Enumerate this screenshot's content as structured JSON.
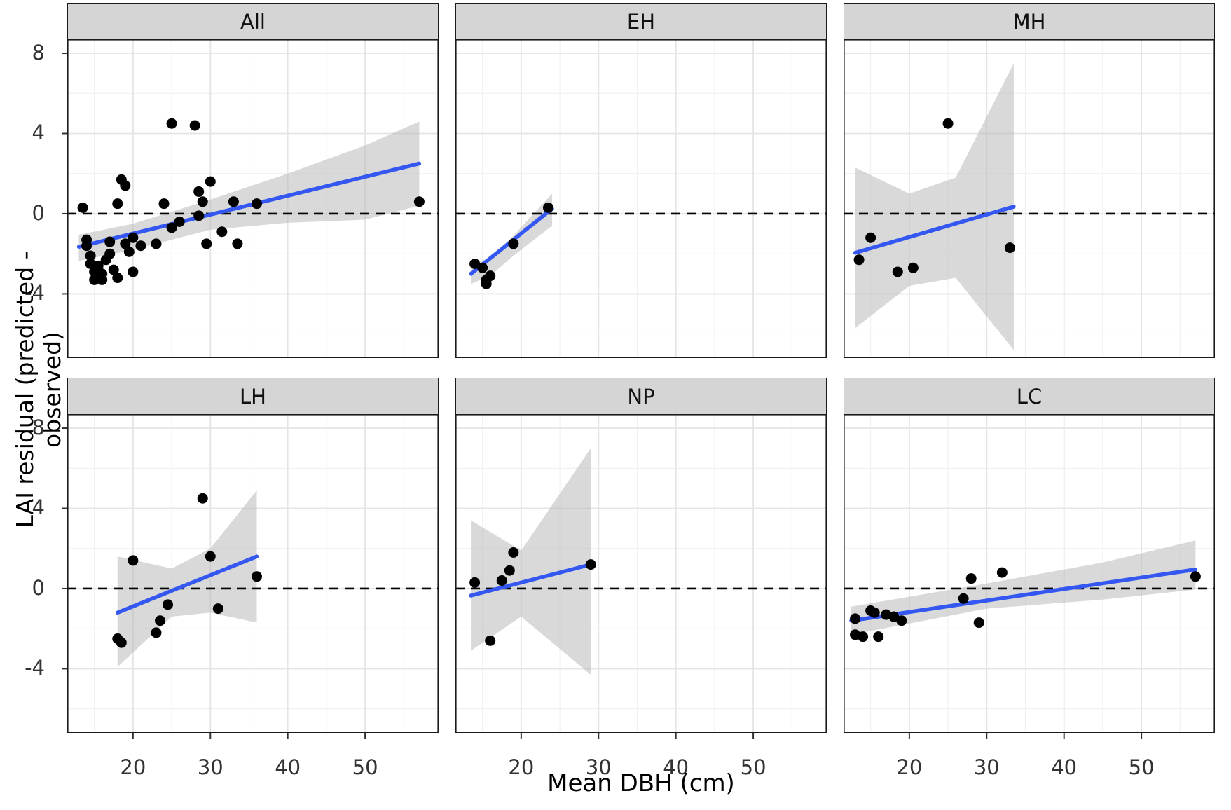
{
  "chart_data": {
    "type": "scatter",
    "title": "",
    "xlabel": "Mean DBH (cm)",
    "ylabel": "LAI residual (predicted - observed)",
    "legend": "none",
    "grid": true,
    "xlim": [
      11.5,
      59.5
    ],
    "ylim": [
      -7.2,
      8.7
    ],
    "x_ticks": [
      20,
      30,
      40,
      50
    ],
    "y_ticks": [
      -4,
      0,
      4,
      8
    ],
    "x_minor": [
      15,
      25,
      35,
      45,
      55
    ],
    "y_minor": [
      -6,
      -2,
      2,
      6
    ],
    "reference_line_y": 0,
    "point_color": "#000000",
    "trend_color": "#3357f0",
    "ribbon_color": "#b9b9b9",
    "grid_major_color": "#e4e4e4",
    "grid_minor_color": "#f1f1f1",
    "strip_bg_color": "#d5d5d5",
    "panels": [
      {
        "title": "All",
        "points": [
          [
            13.5,
            0.3
          ],
          [
            14,
            -1.3
          ],
          [
            14,
            -1.6
          ],
          [
            14.5,
            -2.1
          ],
          [
            14.5,
            -2.5
          ],
          [
            15,
            -2.9
          ],
          [
            15,
            -3.3
          ],
          [
            15.5,
            -2.6
          ],
          [
            16,
            -3.0
          ],
          [
            16,
            -3.3
          ],
          [
            16.5,
            -2.3
          ],
          [
            17,
            -1.4
          ],
          [
            17,
            -2.0
          ],
          [
            17.5,
            -2.8
          ],
          [
            18,
            -3.2
          ],
          [
            18,
            0.5
          ],
          [
            18.5,
            1.7
          ],
          [
            19,
            1.4
          ],
          [
            19,
            -1.5
          ],
          [
            19.5,
            -1.9
          ],
          [
            20,
            -1.2
          ],
          [
            20,
            -2.9
          ],
          [
            21,
            -1.6
          ],
          [
            23,
            -1.5
          ],
          [
            24,
            0.5
          ],
          [
            25,
            4.5
          ],
          [
            25,
            -0.7
          ],
          [
            26,
            -0.4
          ],
          [
            28,
            4.4
          ],
          [
            28.5,
            1.1
          ],
          [
            28.5,
            -0.1
          ],
          [
            29,
            0.6
          ],
          [
            29.5,
            -1.5
          ],
          [
            30,
            1.6
          ],
          [
            31.5,
            -0.9
          ],
          [
            33,
            0.6
          ],
          [
            33.5,
            -1.5
          ],
          [
            36,
            0.5
          ],
          [
            57,
            0.6
          ]
        ],
        "trend": {
          "x": [
            13,
            57
          ],
          "y": [
            -1.65,
            2.5
          ]
        },
        "ribbon": {
          "x": [
            13,
            20,
            30,
            40,
            50,
            57
          ],
          "upper": [
            -1.05,
            -0.5,
            0.7,
            2.0,
            3.4,
            4.6
          ],
          "lower": [
            -2.35,
            -1.8,
            -0.8,
            -0.45,
            -0.3,
            0.4
          ]
        }
      },
      {
        "title": "EH",
        "points": [
          [
            14,
            -2.5
          ],
          [
            15,
            -2.7
          ],
          [
            15.5,
            -3.3
          ],
          [
            15.5,
            -3.5
          ],
          [
            16,
            -3.1
          ],
          [
            19,
            -1.5
          ],
          [
            23.5,
            0.3
          ]
        ],
        "trend": {
          "x": [
            13.5,
            24
          ],
          "y": [
            -3.0,
            0.25
          ]
        },
        "ribbon": {
          "x": [
            13.5,
            16,
            19,
            24
          ],
          "upper": [
            -2.5,
            -2.2,
            -1.1,
            1.0
          ],
          "lower": [
            -3.5,
            -3.1,
            -2.1,
            -0.6
          ]
        }
      },
      {
        "title": "MH",
        "points": [
          [
            13.5,
            -2.3
          ],
          [
            15,
            -1.2
          ],
          [
            18.5,
            -2.9
          ],
          [
            20.5,
            -2.7
          ],
          [
            25,
            4.5
          ],
          [
            33,
            -1.7
          ]
        ],
        "trend": {
          "x": [
            13,
            33.5
          ],
          "y": [
            -1.95,
            0.35
          ]
        },
        "ribbon": {
          "x": [
            13,
            20,
            26,
            33.5
          ],
          "upper": [
            2.3,
            1.0,
            1.8,
            7.5
          ],
          "lower": [
            -5.7,
            -3.6,
            -3.2,
            -6.8
          ]
        }
      },
      {
        "title": "LH",
        "points": [
          [
            18,
            -2.5
          ],
          [
            18.5,
            -2.7
          ],
          [
            20,
            1.4
          ],
          [
            23,
            -2.2
          ],
          [
            23.5,
            -1.6
          ],
          [
            24.5,
            -0.8
          ],
          [
            29,
            4.5
          ],
          [
            30,
            1.6
          ],
          [
            31,
            -1.0
          ],
          [
            36,
            0.6
          ]
        ],
        "trend": {
          "x": [
            18,
            36
          ],
          "y": [
            -1.2,
            1.6
          ]
        },
        "ribbon": {
          "x": [
            18,
            25,
            30,
            36
          ],
          "upper": [
            1.6,
            1.0,
            2.0,
            4.9
          ],
          "lower": [
            -3.9,
            -1.4,
            -1.2,
            -1.7
          ]
        }
      },
      {
        "title": "NP",
        "points": [
          [
            14,
            0.3
          ],
          [
            16,
            -2.6
          ],
          [
            17.5,
            0.4
          ],
          [
            18.5,
            0.9
          ],
          [
            19,
            1.8
          ],
          [
            29,
            1.2
          ]
        ],
        "trend": {
          "x": [
            13.5,
            29
          ],
          "y": [
            -0.35,
            1.2
          ]
        },
        "ribbon": {
          "x": [
            13.5,
            20,
            29
          ],
          "upper": [
            3.4,
            1.9,
            7.0
          ],
          "lower": [
            -3.1,
            -1.4,
            -4.3
          ]
        }
      },
      {
        "title": "LC",
        "points": [
          [
            13,
            -1.5
          ],
          [
            13,
            -2.3
          ],
          [
            14,
            -2.4
          ],
          [
            15,
            -1.1
          ],
          [
            15.5,
            -1.2
          ],
          [
            16,
            -2.4
          ],
          [
            17,
            -1.3
          ],
          [
            18,
            -1.4
          ],
          [
            19,
            -1.6
          ],
          [
            27,
            -0.5
          ],
          [
            28,
            0.5
          ],
          [
            29,
            -1.7
          ],
          [
            32,
            0.8
          ],
          [
            57,
            0.6
          ]
        ],
        "trend": {
          "x": [
            12.5,
            57
          ],
          "y": [
            -1.6,
            0.95
          ]
        },
        "ribbon": {
          "x": [
            12.5,
            30,
            45,
            57
          ],
          "upper": [
            -0.9,
            0.25,
            1.3,
            2.4
          ],
          "lower": [
            -2.3,
            -1.0,
            -0.55,
            -0.05
          ]
        }
      }
    ]
  }
}
